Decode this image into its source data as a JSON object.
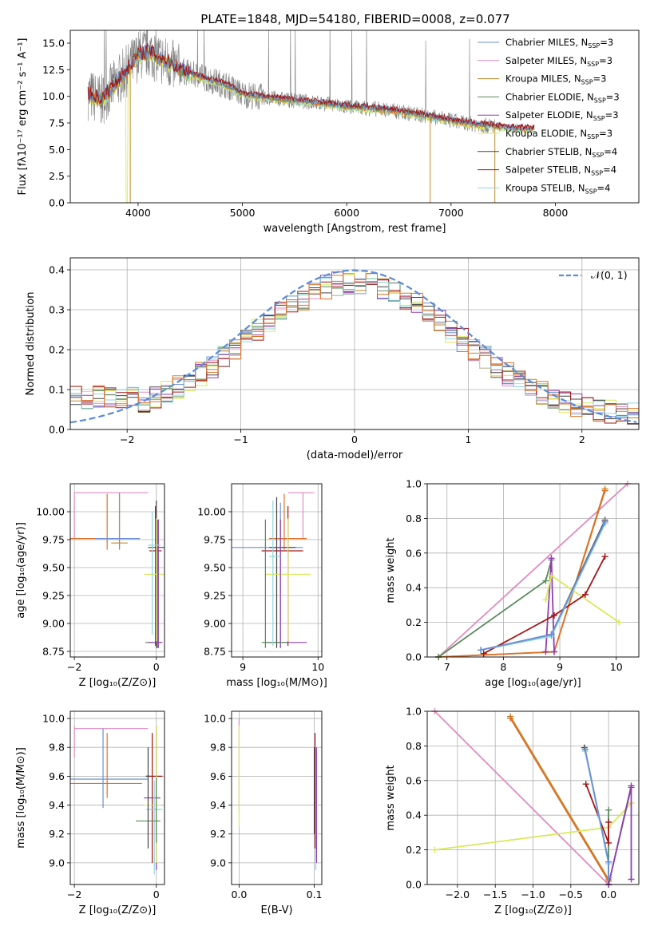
{
  "title": "PLATE=1848, MJD=54180, FIBERID=0008, z=0.077",
  "colors": {
    "chabrier_miles": "#6b8fd6",
    "salpeter_miles": "#e08cc0",
    "kroupa_miles": "#c08a2a",
    "chabrier_elodie": "#5a8a5a",
    "salpeter_elodie": "#8f3fae",
    "kroupa_elodie": "#d9e85a",
    "chabrier_stelib": "#444444",
    "salpeter_stelib": "#a31616",
    "kroupa_stelib": "#8fd6e0",
    "orange": "#e07028",
    "gauss": "#5b8bd6",
    "data": "#808080"
  },
  "legend": [
    {
      "text": "Chabrier MILES, N",
      "sub": "SSP",
      "tail": "=3",
      "color": "#6b8fd6"
    },
    {
      "text": "Salpeter MILES, N",
      "sub": "SSP",
      "tail": "=3",
      "color": "#e08cc0"
    },
    {
      "text": "Kroupa MILES, N",
      "sub": "SSP",
      "tail": "=3",
      "color": "#c08a2a"
    },
    {
      "text": "Chabrier ELODIE, N",
      "sub": "SSP",
      "tail": "=3",
      "color": "#5a8a5a"
    },
    {
      "text": "Salpeter ELODIE, N",
      "sub": "SSP",
      "tail": "=3",
      "color": "#8f3fae"
    },
    {
      "text": "Kroupa ELODIE, N",
      "sub": "SSP",
      "tail": "=3",
      "color": "#d9e85a"
    },
    {
      "text": "Chabrier STELIB, N",
      "sub": "SSP",
      "tail": "=4",
      "color": "#444444"
    },
    {
      "text": "Salpeter STELIB, N",
      "sub": "SSP",
      "tail": "=4",
      "color": "#a31616"
    },
    {
      "text": "Kroupa STELIB, N",
      "sub": "SSP",
      "tail": "=4",
      "color": "#8fd6e0"
    }
  ],
  "chart_data": [
    {
      "id": "spectrum",
      "type": "line",
      "xlabel": "wavelength [Angstrom, rest frame]",
      "ylabel": "Flux [fλ10⁻¹⁷ erg cm⁻² s⁻¹ A⁻¹]",
      "xlim": [
        3350,
        8800
      ],
      "ylim": [
        0,
        16.2
      ],
      "xticks": [
        4000,
        5000,
        6000,
        7000,
        8000
      ],
      "yticks": [
        0.0,
        2.5,
        5.0,
        7.5,
        10.0,
        12.5,
        15.0
      ],
      "model_envelope": {
        "x": [
          3500,
          3650,
          3800,
          3900,
          4000,
          4100,
          4200,
          4400,
          4600,
          4800,
          4900,
          5000,
          5200,
          5500,
          5800,
          6000,
          6200,
          6400,
          6600,
          6800,
          7000,
          7200,
          7400,
          7600,
          7800
        ],
        "y": [
          10.3,
          9.6,
          11.4,
          12.5,
          13.8,
          14.2,
          13.6,
          12.5,
          11.8,
          11.2,
          10.8,
          10.2,
          9.9,
          9.6,
          9.3,
          9.0,
          8.9,
          8.7,
          8.4,
          8.1,
          7.7,
          7.4,
          7.2,
          7.0,
          6.9
        ]
      }
    },
    {
      "id": "residuals",
      "type": "histogram",
      "xlabel": "(data-model)/error",
      "ylabel": "Normed distribution",
      "xlim": [
        -2.5,
        2.5
      ],
      "ylim": [
        0,
        0.43
      ],
      "xticks": [
        -2,
        -1,
        0,
        1,
        2
      ],
      "yticks": [
        0.0,
        0.1,
        0.2,
        0.3,
        0.4
      ],
      "gauss_label": "𝒩(0, 1)"
    },
    {
      "id": "age_vs_Z",
      "type": "errorbar",
      "xlabel": "Z [log₁₀(Z/Z⊙)]",
      "ylabel": "age  [log₁₀(age/yr)]",
      "xlim": [
        -2.1,
        0.2
      ],
      "ylim": [
        8.7,
        10.25
      ],
      "xticks": [
        -2,
        0
      ],
      "yticks": [
        8.75,
        9.0,
        9.25,
        9.5,
        9.75,
        10.0
      ],
      "points": [
        {
          "x": -2.0,
          "y": 10.17,
          "color": "#e08cc0",
          "xerr": [
            0,
            1.8
          ],
          "yerr": [
            0.42,
            0
          ]
        },
        {
          "x": -1.2,
          "y": 9.76,
          "color": "#e07028",
          "xerr": [
            0.9,
            0.8
          ],
          "yerr": [
            0.1,
            0.4
          ]
        },
        {
          "x": -0.9,
          "y": 9.76,
          "color": "#6b8fd6",
          "xerr": [
            0.6,
            0.5
          ],
          "yerr": [
            0.1,
            0.4
          ]
        },
        {
          "x": -0.9,
          "y": 9.72,
          "color": "#c08a2a",
          "xerr": [
            0.2,
            0.2
          ],
          "yerr": [
            0.05,
            0.45
          ]
        },
        {
          "x": 0.0,
          "y": 9.68,
          "color": "#444444",
          "xerr": [
            0.2,
            0.2
          ],
          "yerr": [
            0.9,
            0.42
          ]
        },
        {
          "x": -0.02,
          "y": 9.65,
          "color": "#a31616",
          "xerr": [
            0.15,
            0.15
          ],
          "yerr": [
            0.85,
            0.4
          ]
        },
        {
          "x": 0.0,
          "y": 9.44,
          "color": "#d9e85a",
          "xerr": [
            0.3,
            0.2
          ],
          "yerr": [
            0.6,
            0.5
          ]
        },
        {
          "x": 0.03,
          "y": 8.83,
          "color": "#5a8a5a",
          "xerr": [
            0.3,
            0.1
          ],
          "yerr": [
            0.05,
            1.1
          ]
        },
        {
          "x": 0.05,
          "y": 8.83,
          "color": "#8f3fae",
          "xerr": [
            0.25,
            0.1
          ],
          "yerr": [
            0.05,
            1.1
          ]
        },
        {
          "x": -0.1,
          "y": 9.7,
          "color": "#8fd6e0",
          "xerr": [
            0.1,
            0.2
          ],
          "yerr": [
            0.8,
            0.3
          ]
        }
      ]
    },
    {
      "id": "age_vs_mass",
      "type": "errorbar",
      "xlabel": "mass [log₁₀(M/M⊙)]",
      "ylabel": "",
      "xlim": [
        8.85,
        10.05
      ],
      "ylim": [
        8.7,
        10.25
      ],
      "xticks": [
        9,
        10
      ],
      "yticks": [
        8.75,
        9.0,
        9.25,
        9.5,
        9.75,
        10.0
      ],
      "points": [
        {
          "x": 9.8,
          "y": 10.17,
          "color": "#e08cc0",
          "xerr": [
            0.2,
            0.15
          ],
          "yerr": [
            0.42,
            0
          ]
        },
        {
          "x": 9.55,
          "y": 9.76,
          "color": "#e07028",
          "xerr": [
            0.2,
            0.3
          ],
          "yerr": [
            0.1,
            0.4
          ]
        },
        {
          "x": 9.5,
          "y": 9.68,
          "color": "#6b8fd6",
          "xerr": [
            0.65,
            0.3
          ],
          "yerr": [
            0.9,
            0.4
          ]
        },
        {
          "x": 9.45,
          "y": 9.68,
          "color": "#444444",
          "xerr": [
            0.1,
            0.25
          ],
          "yerr": [
            0.9,
            0.45
          ]
        },
        {
          "x": 9.6,
          "y": 9.65,
          "color": "#a31616",
          "xerr": [
            0.35,
            0.2
          ],
          "yerr": [
            0.85,
            0.4
          ]
        },
        {
          "x": 9.6,
          "y": 9.44,
          "color": "#d9e85a",
          "xerr": [
            0.3,
            0.3
          ],
          "yerr": [
            0.6,
            0.5
          ]
        },
        {
          "x": 9.5,
          "y": 8.83,
          "color": "#8f3fae",
          "xerr": [
            0.2,
            0.35
          ],
          "yerr": [
            0.05,
            1.1
          ]
        },
        {
          "x": 9.3,
          "y": 8.83,
          "color": "#5a8a5a",
          "xerr": [
            0.05,
            0.3
          ],
          "yerr": [
            0.05,
            1.1
          ]
        },
        {
          "x": 9.4,
          "y": 9.6,
          "color": "#8fd6e0",
          "xerr": [
            0.05,
            0.1
          ],
          "yerr": [
            0.8,
            0.5
          ]
        }
      ]
    },
    {
      "id": "weight_vs_age",
      "type": "line",
      "xlabel": "age  [log₁₀(age/yr)]",
      "ylabel": "mass weight",
      "xlim": [
        6.65,
        10.4
      ],
      "ylim": [
        0,
        1.0
      ],
      "xticks": [
        7,
        8,
        9,
        10
      ],
      "yticks": [
        0.0,
        0.2,
        0.4,
        0.6,
        0.8,
        1.0
      ],
      "series": [
        {
          "color": "#e08cc0",
          "x": [
            6.85,
            10.2
          ],
          "y": [
            0.0,
            1.0
          ]
        },
        {
          "color": "#c08a2a",
          "x": [
            6.85,
            8.9,
            9.8
          ],
          "y": [
            0.0,
            0.03,
            0.97
          ]
        },
        {
          "color": "#e07028",
          "x": [
            6.85,
            8.9,
            9.8
          ],
          "y": [
            0.0,
            0.03,
            0.96
          ]
        },
        {
          "color": "#5a8a5a",
          "x": [
            6.85,
            8.75,
            8.85
          ],
          "y": [
            0.0,
            0.44,
            0.56
          ]
        },
        {
          "color": "#8f3fae",
          "x": [
            8.75,
            8.85,
            8.9
          ],
          "y": [
            0.03,
            0.57,
            0.03
          ]
        },
        {
          "color": "#d9e85a",
          "x": [
            8.75,
            8.85,
            10.05
          ],
          "y": [
            0.33,
            0.47,
            0.2
          ]
        },
        {
          "color": "#a31616",
          "x": [
            7.65,
            8.9,
            9.45,
            9.8
          ],
          "y": [
            0.02,
            0.24,
            0.36,
            0.58
          ]
        },
        {
          "color": "#444444",
          "x": [
            7.6,
            8.85,
            9.8
          ],
          "y": [
            0.04,
            0.13,
            0.79
          ]
        },
        {
          "color": "#8fd6e0",
          "x": [
            7.6,
            8.85,
            9.8
          ],
          "y": [
            0.04,
            0.12,
            0.77
          ]
        },
        {
          "color": "#6b8fd6",
          "x": [
            7.6,
            8.85,
            9.8
          ],
          "y": [
            0.04,
            0.13,
            0.78
          ]
        }
      ]
    },
    {
      "id": "mass_vs_Z",
      "type": "errorbar",
      "xlabel": "Z [log₁₀(Z/Z⊙)]",
      "ylabel": "mass [log₁₀(M/M⊙)]",
      "xlim": [
        -2.1,
        0.2
      ],
      "ylim": [
        8.85,
        10.05
      ],
      "xticks": [
        -2,
        0
      ],
      "yticks": [
        9.0,
        9.2,
        9.4,
        9.6,
        9.8,
        10.0
      ],
      "points": [
        {
          "x": -2.0,
          "y": 9.93,
          "color": "#e08cc0",
          "xerr": [
            0,
            1.8
          ],
          "yerr": [
            0.2,
            0.02
          ]
        },
        {
          "x": -1.3,
          "y": 9.58,
          "color": "#6b8fd6",
          "xerr": [
            0.8,
            1.1
          ],
          "yerr": [
            0.2,
            0.35
          ]
        },
        {
          "x": -1.2,
          "y": 9.55,
          "color": "#e07028",
          "xerr": [
            0.9,
            0.85
          ],
          "yerr": [
            0.1,
            0.35
          ]
        },
        {
          "x": -0.1,
          "y": 9.6,
          "color": "#a31616",
          "xerr": [
            0.15,
            0.25
          ],
          "yerr": [
            0.6,
            0.3
          ]
        },
        {
          "x": 0.0,
          "y": 9.45,
          "color": "#8f3fae",
          "xerr": [
            0.3,
            0.1
          ],
          "yerr": [
            0.5,
            0.5
          ]
        },
        {
          "x": 0.0,
          "y": 9.4,
          "color": "#d9e85a",
          "xerr": [
            0.3,
            0.1
          ],
          "yerr": [
            0.4,
            0.55
          ]
        },
        {
          "x": -0.05,
          "y": 9.37,
          "color": "#8fd6e0",
          "xerr": [
            0.2,
            0.2
          ],
          "yerr": [
            0.45,
            0.2
          ]
        },
        {
          "x": 0.0,
          "y": 9.29,
          "color": "#5a8a5a",
          "xerr": [
            0.5,
            0.1
          ],
          "yerr": [
            0.15,
            0.3
          ]
        },
        {
          "x": -0.2,
          "y": 9.6,
          "color": "#444444",
          "xerr": [
            0.05,
            0.05
          ],
          "yerr": [
            0.5,
            0.2
          ]
        }
      ]
    },
    {
      "id": "mass_vs_ebv",
      "type": "errorbar",
      "xlabel": "E(B-V)",
      "ylabel": "",
      "xlim": [
        -0.01,
        0.11
      ],
      "ylim": [
        8.85,
        10.05
      ],
      "xticks": [
        0.0,
        0.1
      ],
      "yticks": [
        9.0,
        9.2,
        9.4,
        9.6,
        9.8,
        10.0
      ],
      "points": [
        {
          "x": 0.0,
          "y": 9.8,
          "color": "#e08cc0",
          "xerr": [
            0,
            0
          ],
          "yerr": [
            0.45,
            0.2
          ]
        },
        {
          "x": 0.0,
          "y": 9.55,
          "color": "#d9e85a",
          "xerr": [
            0,
            0
          ],
          "yerr": [
            0.3,
            0.4
          ]
        },
        {
          "x": 0.1,
          "y": 9.6,
          "color": "#444444",
          "xerr": [
            0,
            0
          ],
          "yerr": [
            0.4,
            0.2
          ]
        },
        {
          "x": 0.101,
          "y": 9.55,
          "color": "#a31616",
          "xerr": [
            0,
            0
          ],
          "yerr": [
            0.45,
            0.35
          ]
        },
        {
          "x": 0.102,
          "y": 9.4,
          "color": "#8fd6e0",
          "xerr": [
            0,
            0
          ],
          "yerr": [
            0.45,
            0.4
          ]
        },
        {
          "x": 0.103,
          "y": 9.4,
          "color": "#8f3fae",
          "xerr": [
            0,
            0
          ],
          "yerr": [
            0.4,
            0.4
          ]
        }
      ]
    },
    {
      "id": "weight_vs_Z",
      "type": "line",
      "xlabel": "Z [log₁₀(Z/Z⊙)]",
      "ylabel": "mass weight",
      "xlim": [
        -2.4,
        0.4
      ],
      "ylim": [
        0,
        1.0
      ],
      "xticks": [
        -2.0,
        -1.5,
        -1.0,
        -0.5,
        0.0
      ],
      "yticks": [
        0.0,
        0.2,
        0.4,
        0.6,
        0.8,
        1.0
      ],
      "series": [
        {
          "color": "#e08cc0",
          "x": [
            -2.3,
            0.0
          ],
          "y": [
            1.0,
            0.0
          ]
        },
        {
          "color": "#c08a2a",
          "x": [
            -1.3,
            0.0,
            0.0
          ],
          "y": [
            0.97,
            0.03,
            0.0
          ]
        },
        {
          "color": "#e07028",
          "x": [
            -1.3,
            0.0
          ],
          "y": [
            0.96,
            0.02
          ]
        },
        {
          "color": "#d9e85a",
          "x": [
            -2.3,
            0.0,
            0.3
          ],
          "y": [
            0.2,
            0.33,
            0.47
          ]
        },
        {
          "color": "#5a8a5a",
          "x": [
            0.0,
            0.0,
            0.3
          ],
          "y": [
            0.43,
            0.0,
            0.56
          ]
        },
        {
          "color": "#8f3fae",
          "x": [
            0.0,
            0.3,
            0.3
          ],
          "y": [
            0.0,
            0.57,
            0.03
          ]
        },
        {
          "color": "#a31616",
          "x": [
            -0.3,
            0.0,
            0.0
          ],
          "y": [
            0.58,
            0.24,
            0.36
          ]
        },
        {
          "color": "#444444",
          "x": [
            -0.32,
            0.0,
            0.0
          ],
          "y": [
            0.79,
            0.13,
            0.04
          ]
        },
        {
          "color": "#8fd6e0",
          "x": [
            -0.31,
            0.0,
            0.0
          ],
          "y": [
            0.77,
            0.12,
            0.04
          ]
        },
        {
          "color": "#6b8fd6",
          "x": [
            -0.31,
            0.0,
            0.0
          ],
          "y": [
            0.78,
            0.13,
            0.04
          ]
        }
      ]
    }
  ]
}
